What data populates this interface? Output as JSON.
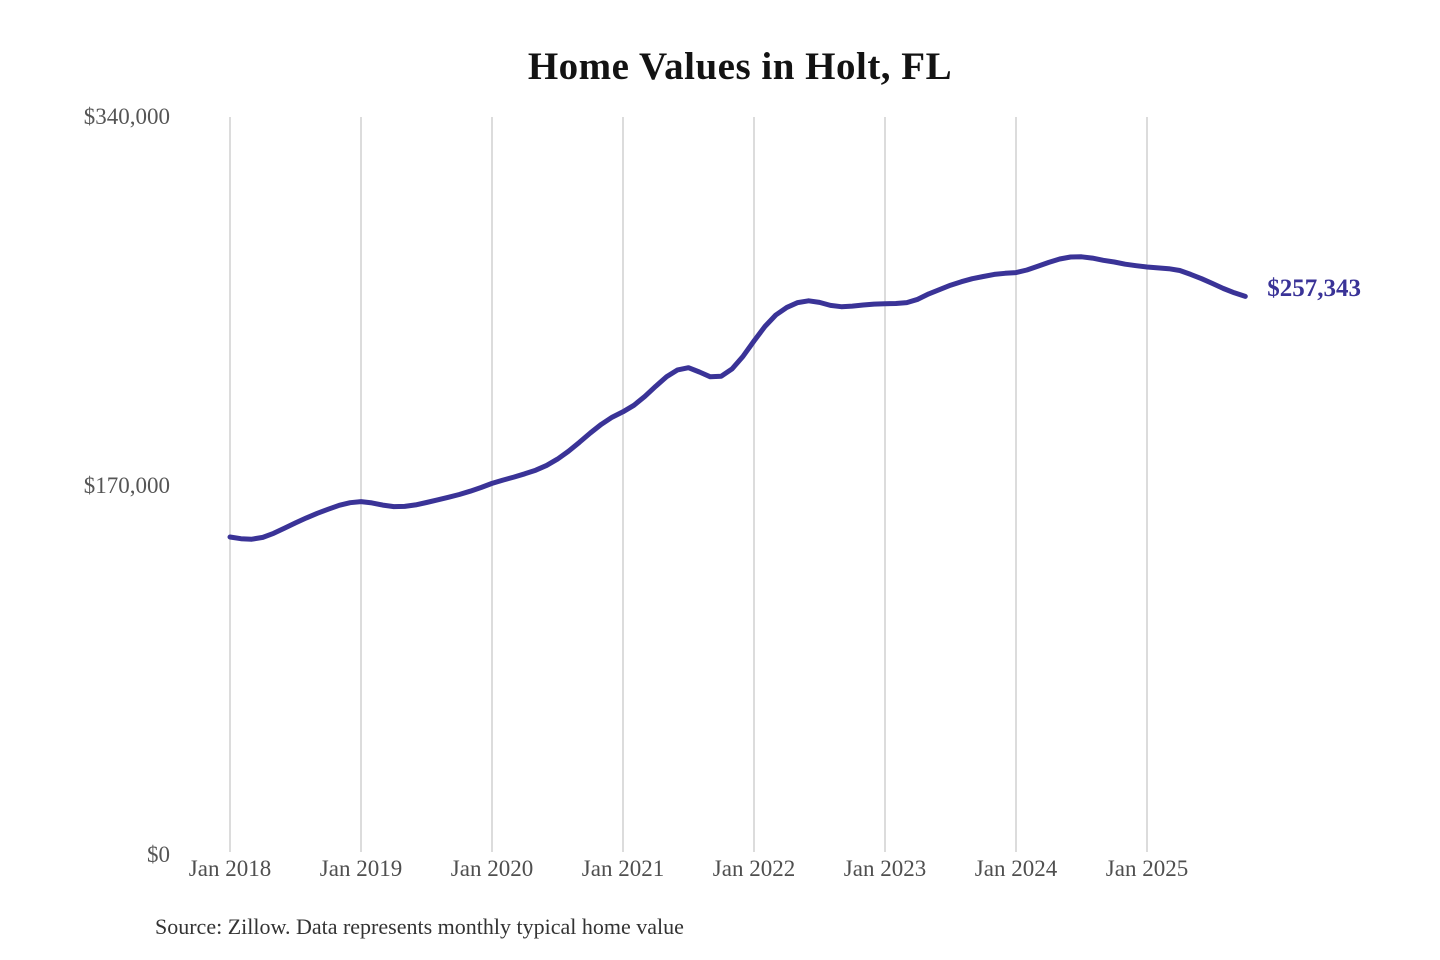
{
  "chart": {
    "title": "Home Values in Holt, FL",
    "end_label": "$257,343",
    "source_note": "Source: Zillow. Data represents monthly typical home value",
    "colors": {
      "line": "#3a3397",
      "end_label": "#3a3397",
      "grid": "#c9c9c9",
      "title": "#131313",
      "axis_label": "#555555",
      "source": "#333333",
      "background": "#ffffff"
    }
  },
  "chart_data": {
    "type": "line",
    "title": "Home Values in Holt, FL",
    "ylabel": "",
    "xlabel": "",
    "ylim": [
      0,
      340000
    ],
    "grid": "vertical-only",
    "legend": false,
    "series_name": "Typical home value (monthly)",
    "x": [
      "2018-01",
      "2018-02",
      "2018-03",
      "2018-04",
      "2018-05",
      "2018-06",
      "2018-07",
      "2018-08",
      "2018-09",
      "2018-10",
      "2018-11",
      "2018-12",
      "2019-01",
      "2019-02",
      "2019-03",
      "2019-04",
      "2019-05",
      "2019-06",
      "2019-07",
      "2019-08",
      "2019-09",
      "2019-10",
      "2019-11",
      "2019-12",
      "2020-01",
      "2020-02",
      "2020-03",
      "2020-04",
      "2020-05",
      "2020-06",
      "2020-07",
      "2020-08",
      "2020-09",
      "2020-10",
      "2020-11",
      "2020-12",
      "2021-01",
      "2021-02",
      "2021-03",
      "2021-04",
      "2021-05",
      "2021-06",
      "2021-07",
      "2021-08",
      "2021-09",
      "2021-10",
      "2021-11",
      "2021-12",
      "2022-01",
      "2022-02",
      "2022-03",
      "2022-04",
      "2022-05",
      "2022-06",
      "2022-07",
      "2022-08",
      "2022-09",
      "2022-10",
      "2022-11",
      "2022-12",
      "2023-01",
      "2023-02",
      "2023-03",
      "2023-04",
      "2023-05",
      "2023-06",
      "2023-07",
      "2023-08",
      "2023-09",
      "2023-10",
      "2023-11",
      "2023-12",
      "2024-01",
      "2024-02",
      "2024-03",
      "2024-04",
      "2024-05",
      "2024-06",
      "2024-07",
      "2024-08",
      "2024-09",
      "2024-10",
      "2024-11",
      "2024-12",
      "2025-01",
      "2025-02",
      "2025-03",
      "2025-04",
      "2025-05",
      "2025-06",
      "2025-07",
      "2025-08",
      "2025-09",
      "2025-10"
    ],
    "values": [
      146500,
      145700,
      145500,
      146300,
      148200,
      150600,
      153000,
      155300,
      157400,
      159300,
      161100,
      162300,
      162800,
      162200,
      161200,
      160500,
      160600,
      161300,
      162400,
      163600,
      164800,
      166100,
      167600,
      169300,
      171200,
      172700,
      174100,
      175600,
      177300,
      179500,
      182400,
      186000,
      190100,
      194400,
      198400,
      201700,
      204200,
      207200,
      211300,
      216000,
      220400,
      223500,
      224500,
      222500,
      220300,
      220600,
      224000,
      229800,
      236800,
      243500,
      248800,
      252300,
      254500,
      255300,
      254600,
      253200,
      252600,
      252900,
      253400,
      253800,
      254000,
      254100,
      254500,
      256000,
      258500,
      260500,
      262500,
      264100,
      265500,
      266500,
      267500,
      268000,
      268300,
      269500,
      271200,
      273000,
      274600,
      275500,
      275600,
      275000,
      274000,
      273200,
      272200,
      271500,
      270900,
      270500,
      270100,
      269300,
      267500,
      265500,
      263300,
      261000,
      259000,
      257343
    ],
    "y_ticks": [
      {
        "label": "$0",
        "value": 0
      },
      {
        "label": "$170,000",
        "value": 170000
      },
      {
        "label": "$340,000",
        "value": 340000
      }
    ],
    "x_ticks": [
      {
        "label": "Jan 2018",
        "month_index": 0
      },
      {
        "label": "Jan 2019",
        "month_index": 12
      },
      {
        "label": "Jan 2020",
        "month_index": 24
      },
      {
        "label": "Jan 2021",
        "month_index": 36
      },
      {
        "label": "Jan 2022",
        "month_index": 48
      },
      {
        "label": "Jan 2023",
        "month_index": 60
      },
      {
        "label": "Jan 2024",
        "month_index": 72
      },
      {
        "label": "Jan 2025",
        "month_index": 84
      }
    ],
    "end_annotation": {
      "label": "$257,343",
      "value": 257343,
      "x": "2025-10"
    },
    "source": "Source: Zillow. Data represents monthly typical home value"
  }
}
